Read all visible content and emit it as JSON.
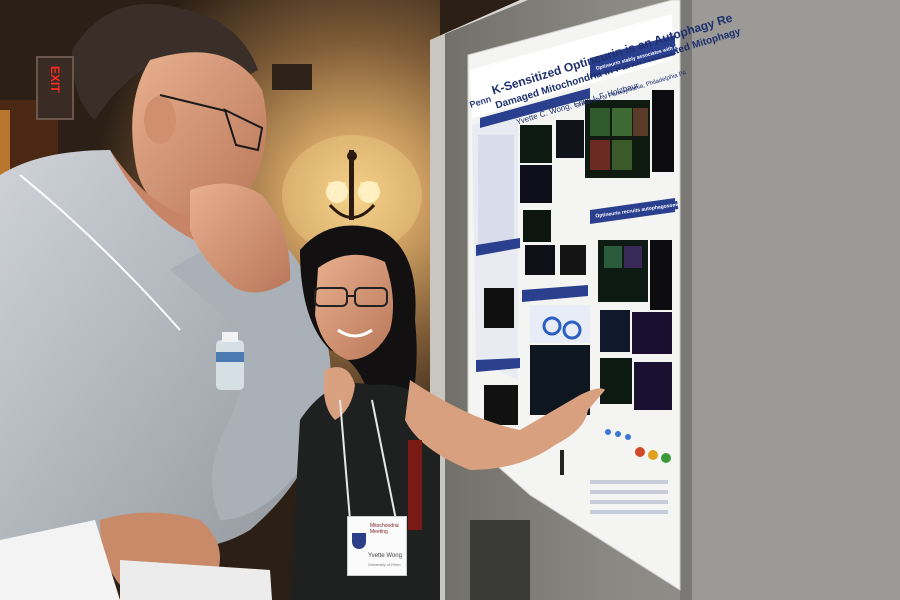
{
  "photo": {
    "description_tags": [
      "poster-session",
      "two-people",
      "research-poster",
      "wall-sconce"
    ],
    "colors": {
      "wall_warm": "#b88a4e",
      "wall_dark": "#3a2a1c",
      "board_gray": "#8f8f8a",
      "poster_white": "#f4f4f2",
      "poster_navy": "#2b3f8f",
      "shirt_blue_gray": "#b7bcc3",
      "dress_dark": "#1e2120"
    }
  },
  "exit_sign": {
    "text": "EXIT"
  },
  "poster": {
    "title_line1": "K-Sensitized Optineurin is an Autophagy Re",
    "title_line2": "Damaged Mitochondria in Parkin-mediated Mitophagy",
    "authors": "Yvette C. Wong, Erika L.F. Holzbaur",
    "affiliation": "University of Pennsylvania, Philadelphia PA",
    "logo_text": "Penn",
    "section_1": "Optineurin stably associates with damaged mitochondria via its ubiquitin binding domain",
    "section_2": "Optineurin recruits autophagosome formation around damaged mitochondria"
  },
  "badge": {
    "header": "Mitochondria Meeting",
    "name": "Yvette Wong",
    "org": "University of Penn"
  }
}
